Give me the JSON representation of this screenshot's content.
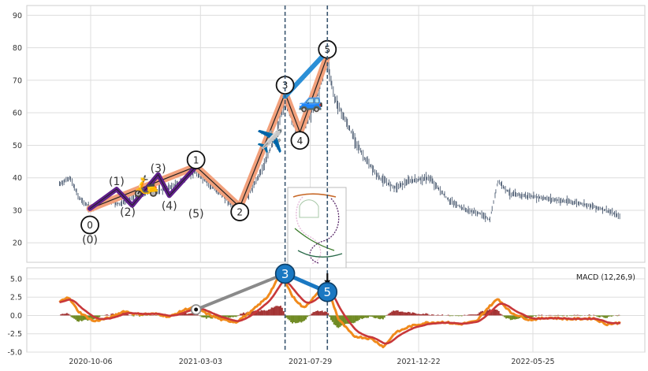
{
  "chart_data": [
    {
      "type": "line",
      "panel": "price",
      "ylim": [
        14,
        93
      ],
      "y_ticks": [
        20,
        30,
        40,
        50,
        60,
        70,
        80,
        90
      ],
      "x_ticks": [
        "2020-10-06",
        "2021-03-03",
        "2021-07-29",
        "2021-12-22",
        "2022-05-25"
      ],
      "vlines": [
        "2021-06-25",
        "2021-08-21"
      ],
      "price_anchors": [
        [
          "2020-08-25",
          38
        ],
        [
          "2020-09-08",
          40
        ],
        [
          "2020-09-20",
          34
        ],
        [
          "2020-10-05",
          30.5
        ],
        [
          "2020-10-25",
          33
        ],
        [
          "2020-11-15",
          32
        ],
        [
          "2020-12-10",
          35
        ],
        [
          "2021-01-05",
          36
        ],
        [
          "2021-02-01",
          38
        ],
        [
          "2021-02-22",
          42
        ],
        [
          "2021-03-15",
          38
        ],
        [
          "2021-04-05",
          34
        ],
        [
          "2021-04-20",
          30
        ],
        [
          "2021-05-10",
          36
        ],
        [
          "2021-05-30",
          45
        ],
        [
          "2021-06-15",
          55
        ],
        [
          "2021-06-25",
          64
        ],
        [
          "2021-07-08",
          56
        ],
        [
          "2021-07-18",
          54
        ],
        [
          "2021-08-05",
          63
        ],
        [
          "2021-08-20",
          77
        ],
        [
          "2021-08-30",
          65
        ],
        [
          "2021-09-20",
          55
        ],
        [
          "2021-10-10",
          46
        ],
        [
          "2021-10-30",
          40
        ],
        [
          "2021-11-20",
          37
        ],
        [
          "2021-12-10",
          39
        ],
        [
          "2022-01-05",
          40
        ],
        [
          "2022-02-01",
          33
        ],
        [
          "2022-02-25",
          30
        ],
        [
          "2022-03-15",
          29
        ],
        [
          "2022-03-28",
          27
        ],
        [
          "2022-04-08",
          39
        ],
        [
          "2022-04-25",
          35
        ],
        [
          "2022-06-01",
          34
        ],
        [
          "2022-07-01",
          33
        ],
        [
          "2022-08-01",
          32
        ],
        [
          "2022-09-01",
          30
        ],
        [
          "2022-09-20",
          28
        ]
      ],
      "wave_main": {
        "labels": [
          "0",
          "1",
          "2",
          "3",
          "4",
          "5"
        ],
        "points": [
          [
            "2020-10-05",
            30.5
          ],
          [
            "2021-02-25",
            43.5
          ],
          [
            "2021-04-25",
            31
          ],
          [
            "2021-06-25",
            66
          ],
          [
            "2021-07-15",
            54
          ],
          [
            "2021-08-21",
            77.5
          ]
        ],
        "label_points": [
          [
            "2020-10-05",
            25.5
          ],
          [
            "2021-02-25",
            45.5
          ],
          [
            "2021-04-25",
            29.5
          ],
          [
            "2021-06-25",
            68.5
          ],
          [
            "2021-07-15",
            51.5
          ],
          [
            "2021-08-21",
            79.5
          ]
        ]
      },
      "wave_sub": {
        "labels": [
          "(0)",
          "(1)",
          "(2)",
          "(3)",
          "(4)",
          "(5)"
        ],
        "points": [
          [
            "2020-10-05",
            30.5
          ],
          [
            "2020-11-10",
            36.5
          ],
          [
            "2020-12-01",
            31.5
          ],
          [
            "2021-01-05",
            41
          ],
          [
            "2021-01-20",
            34.5
          ],
          [
            "2021-02-25",
            43.5
          ]
        ],
        "label_points": [
          [
            "2020-10-05",
            21
          ],
          [
            "2020-11-10",
            39
          ],
          [
            "2020-11-25",
            29.5
          ],
          [
            "2021-01-05",
            43
          ],
          [
            "2021-01-20",
            31.5
          ],
          [
            "2021-02-25",
            29
          ]
        ]
      },
      "extension": {
        "points": [
          [
            "2021-06-25",
            65
          ],
          [
            "2021-08-21",
            79
          ]
        ]
      },
      "icons": {
        "scooter": "scooter-emoji",
        "airplane": "airplane-emoji",
        "car": "car-emoji",
        "emoji_values": {
          "scooter": "🛵",
          "airplane": "✈️",
          "car": "🚙"
        }
      },
      "colors": {
        "price": "#4a5a70",
        "wave_main": "#f2a07b",
        "wave_sub": "#5e1f8a",
        "extension": "#2b8fd6",
        "vline": "#3a5670"
      }
    },
    {
      "type": "line",
      "panel": "macd",
      "title": "MACD (12,26,9)",
      "ylim": [
        -5,
        6.5
      ],
      "y_ticks": [
        "-5.0",
        "-2.5",
        "0.0",
        "2.5",
        "5.0"
      ],
      "macd_anchors": [
        [
          "2020-08-25",
          1.8
        ],
        [
          "2020-09-05",
          2.6
        ],
        [
          "2020-09-20",
          0.5
        ],
        [
          "2020-10-10",
          -0.8
        ],
        [
          "2020-11-01",
          -0.3
        ],
        [
          "2020-11-20",
          0.6
        ],
        [
          "2020-12-05",
          0.2
        ],
        [
          "2021-01-05",
          0.2
        ],
        [
          "2021-01-20",
          -0.2
        ],
        [
          "2021-02-10",
          0.8
        ],
        [
          "2021-02-25",
          1.2
        ],
        [
          "2021-03-10",
          0.3
        ],
        [
          "2021-04-01",
          -0.6
        ],
        [
          "2021-04-20",
          -0.9
        ],
        [
          "2021-05-10",
          0.5
        ],
        [
          "2021-06-01",
          2.5
        ],
        [
          "2021-06-20",
          5.8
        ],
        [
          "2021-07-05",
          2.6
        ],
        [
          "2021-07-20",
          1.0
        ],
        [
          "2021-08-10",
          3.2
        ],
        [
          "2021-08-21",
          3.8
        ],
        [
          "2021-09-05",
          -0.5
        ],
        [
          "2021-09-25",
          -2.8
        ],
        [
          "2021-10-20",
          -3.2
        ],
        [
          "2021-11-05",
          -4.3
        ],
        [
          "2021-11-20",
          -2.4
        ],
        [
          "2021-12-10",
          -1.5
        ],
        [
          "2022-01-01",
          -1.0
        ],
        [
          "2022-01-25",
          -0.9
        ],
        [
          "2022-02-15",
          -1.2
        ],
        [
          "2022-03-10",
          -0.8
        ],
        [
          "2022-03-25",
          1.0
        ],
        [
          "2022-04-08",
          2.3
        ],
        [
          "2022-04-25",
          0.4
        ],
        [
          "2022-05-20",
          -0.6
        ],
        [
          "2022-06-15",
          -0.3
        ],
        [
          "2022-07-15",
          -0.5
        ],
        [
          "2022-08-15",
          -0.4
        ],
        [
          "2022-09-01",
          -1.2
        ],
        [
          "2022-09-20",
          -1.0
        ]
      ],
      "annotations": [
        {
          "label": "3",
          "date": "2021-06-25",
          "value": 5.7
        },
        {
          "label": "5",
          "date": "2021-08-21",
          "value": 3.2
        }
      ],
      "gray_marker": {
        "date": "2021-02-25",
        "value": 0.8
      },
      "colors": {
        "macd": "#f08a1c",
        "signal": "#c8383a",
        "hist_pos": "#a33333",
        "hist_neg": "#6f8a22",
        "marker": "#1a78c2"
      }
    }
  ]
}
